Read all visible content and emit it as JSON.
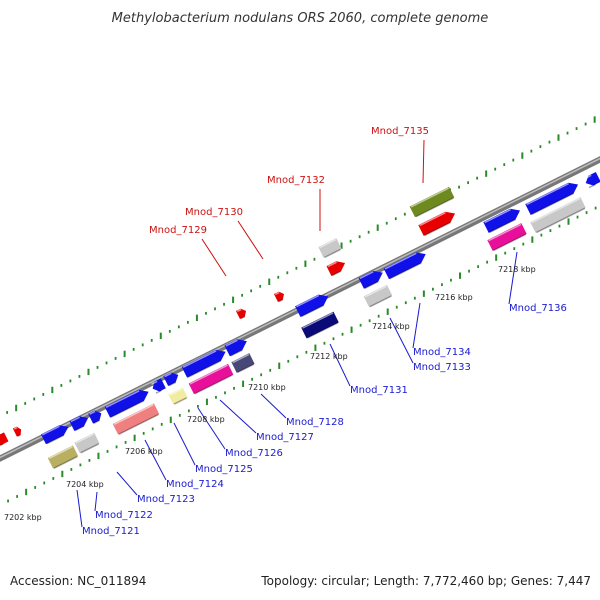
{
  "title": "Methylobacterium nodulans ORS 2060, complete genome",
  "footer": {
    "accession": "Accession: NC_011894",
    "summary": "Topology: circular; Length: 7,772,460 bp; Genes: 7,447"
  },
  "scale_labels": [
    "7202 kbp",
    "7204 kbp",
    "7206 kbp",
    "7208 kbp",
    "7210 kbp",
    "7212 kbp",
    "7214 kbp",
    "7216 kbp",
    "7218 kbp"
  ],
  "genes_below": [
    "Mnod_7121",
    "Mnod_7122",
    "Mnod_7123",
    "Mnod_7124",
    "Mnod_7125",
    "Mnod_7126",
    "Mnod_7127",
    "Mnod_7128",
    "Mnod_7131",
    "Mnod_7133",
    "Mnod_7134",
    "Mnod_7136"
  ],
  "genes_above": [
    "Mnod_7129",
    "Mnod_7130",
    "Mnod_7132",
    "Mnod_7135"
  ],
  "colors": {
    "cds_blue": "#1010e8",
    "highlight_red": "#e80000",
    "olive": "#6e8a1e",
    "tan": "#b8b060",
    "gray": "#c8c8c8",
    "pink": "#f08080",
    "magenta": "#e8109a",
    "yellow": "#f0eca0",
    "navy": "#0a0a78",
    "slate": "#484878",
    "label_blue": "#1a1ad0",
    "label_red": "#cc1111",
    "tick_green": "#2a8a2a"
  }
}
